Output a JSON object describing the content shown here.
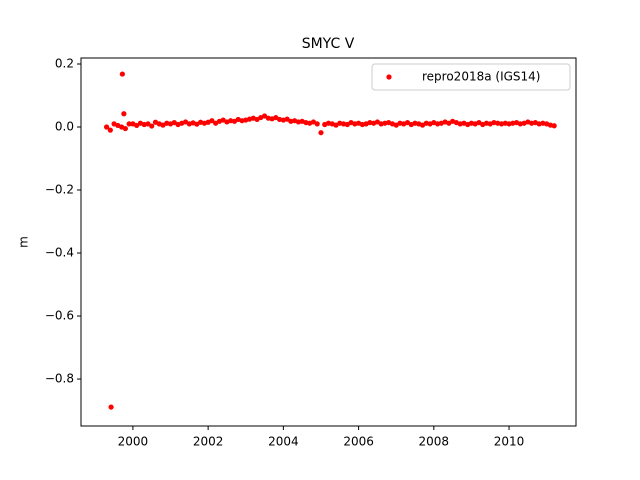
{
  "chart_data": {
    "type": "scatter",
    "title": "SMYC V",
    "ylabel": "m",
    "xlim": [
      1998.62,
      2011.78
    ],
    "ylim": [
      -0.949,
      0.219
    ],
    "xticks": [
      2000,
      2002,
      2004,
      2006,
      2008,
      2010
    ],
    "yticks": [
      {
        "value": -0.8,
        "label": "−0.8"
      },
      {
        "value": -0.6,
        "label": "−0.6"
      },
      {
        "value": -0.4,
        "label": "−0.4"
      },
      {
        "value": -0.2,
        "label": "−0.2"
      },
      {
        "value": 0.0,
        "label": "0.0"
      },
      {
        "value": 0.2,
        "label": "0.2"
      }
    ],
    "legend": "upper right",
    "series": [
      {
        "name": "repro2018a (IGS14)",
        "color": "#ff0000",
        "x": [
          1999.3,
          1999.4,
          1999.5,
          1999.6,
          1999.7,
          1999.8,
          1999.9,
          2000.0,
          2000.1,
          2000.2,
          2000.3,
          2000.4,
          2000.5,
          2000.6,
          2000.7,
          2000.8,
          2000.9,
          2001.0,
          2001.1,
          2001.2,
          2001.3,
          2001.4,
          2001.5,
          2001.6,
          2001.7,
          2001.8,
          2001.9,
          2002.0,
          2002.1,
          2002.2,
          2002.3,
          2002.4,
          2002.5,
          2002.6,
          2002.7,
          2002.8,
          2002.9,
          2003.0,
          2003.1,
          2003.2,
          2003.3,
          2003.4,
          2003.5,
          2003.6,
          2003.7,
          2003.8,
          2003.9,
          2004.0,
          2004.1,
          2004.2,
          2004.3,
          2004.4,
          2004.5,
          2004.6,
          2004.7,
          2004.8,
          2004.9,
          2005.0,
          2005.1,
          2005.2,
          2005.3,
          2005.4,
          2005.5,
          2005.6,
          2005.7,
          2005.8,
          2005.9,
          2006.0,
          2006.1,
          2006.2,
          2006.3,
          2006.4,
          2006.5,
          2006.6,
          2006.7,
          2006.8,
          2006.9,
          2007.0,
          2007.1,
          2007.2,
          2007.3,
          2007.4,
          2007.5,
          2007.6,
          2007.7,
          2007.8,
          2007.9,
          2008.0,
          2008.1,
          2008.2,
          2008.3,
          2008.4,
          2008.5,
          2008.6,
          2008.7,
          2008.8,
          2008.9,
          2009.0,
          2009.1,
          2009.2,
          2009.3,
          2009.4,
          2009.5,
          2009.6,
          2009.7,
          2009.8,
          2009.9,
          2010.0,
          2010.1,
          2010.2,
          2010.3,
          2010.4,
          2010.5,
          2010.6,
          2010.7,
          2010.8,
          2010.9,
          2011.0,
          2011.1,
          2011.2,
          1999.42,
          1999.72,
          1999.76
        ],
        "values": [
          0.0,
          -0.01,
          0.01,
          0.005,
          0.0,
          -0.005,
          0.01,
          0.01,
          0.005,
          0.012,
          0.008,
          0.01,
          0.003,
          0.015,
          0.01,
          0.006,
          0.012,
          0.01,
          0.014,
          0.008,
          0.012,
          0.016,
          0.01,
          0.013,
          0.009,
          0.015,
          0.012,
          0.015,
          0.02,
          0.012,
          0.018,
          0.022,
          0.016,
          0.02,
          0.018,
          0.024,
          0.02,
          0.022,
          0.025,
          0.028,
          0.024,
          0.03,
          0.035,
          0.028,
          0.026,
          0.03,
          0.024,
          0.022,
          0.025,
          0.018,
          0.02,
          0.016,
          0.018,
          0.014,
          0.012,
          0.016,
          0.01,
          -0.018,
          0.008,
          0.012,
          0.01,
          0.006,
          0.012,
          0.01,
          0.008,
          0.014,
          0.01,
          0.012,
          0.008,
          0.01,
          0.014,
          0.012,
          0.016,
          0.01,
          0.012,
          0.014,
          0.01,
          0.006,
          0.012,
          0.01,
          0.014,
          0.008,
          0.012,
          0.01,
          0.006,
          0.012,
          0.01,
          0.014,
          0.01,
          0.012,
          0.016,
          0.012,
          0.018,
          0.014,
          0.01,
          0.012,
          0.008,
          0.012,
          0.01,
          0.014,
          0.008,
          0.012,
          0.01,
          0.014,
          0.012,
          0.01,
          0.012,
          0.01,
          0.012,
          0.014,
          0.01,
          0.012,
          0.016,
          0.012,
          0.014,
          0.01,
          0.012,
          0.01,
          0.006,
          0.004,
          -0.889,
          0.168,
          0.042
        ]
      }
    ]
  }
}
